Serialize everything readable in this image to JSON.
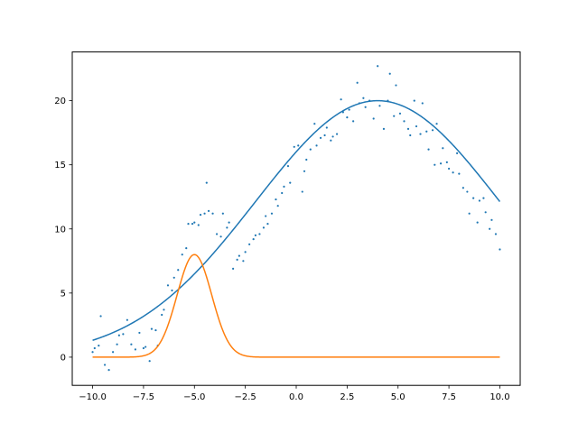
{
  "chart_data": {
    "type": "scatter",
    "title": "",
    "xlabel": "",
    "ylabel": "",
    "xlim": [
      -11.0,
      11.0
    ],
    "ylim": [
      -2.2,
      23.8
    ],
    "grid": false,
    "legend": "none",
    "x_ticks": [
      -10.0,
      -7.5,
      -5.0,
      -2.5,
      0.0,
      2.5,
      5.0,
      7.5,
      10.0
    ],
    "x_tick_labels": [
      "−10.0",
      "−7.5",
      "−5.0",
      "−2.5",
      "0.0",
      "2.5",
      "5.0",
      "7.5",
      "10.0"
    ],
    "y_ticks": [
      0,
      5,
      10,
      15,
      20
    ],
    "y_tick_labels": [
      "0",
      "5",
      "10",
      "15",
      "20"
    ],
    "series": [
      {
        "kind": "scatter",
        "color": "#1f77b4",
        "points": [
          [
            -10.0,
            0.4
          ],
          [
            -9.9,
            0.7
          ],
          [
            -9.7,
            0.9
          ],
          [
            -9.6,
            3.2
          ],
          [
            -9.4,
            -0.6
          ],
          [
            -9.2,
            -1.0
          ],
          [
            -9.0,
            0.4
          ],
          [
            -8.8,
            1.0
          ],
          [
            -8.7,
            1.7
          ],
          [
            -8.5,
            1.8
          ],
          [
            -8.3,
            2.9
          ],
          [
            -8.1,
            1.0
          ],
          [
            -7.9,
            0.6
          ],
          [
            -7.7,
            1.9
          ],
          [
            -7.5,
            0.7
          ],
          [
            -7.4,
            0.8
          ],
          [
            -7.2,
            -0.3
          ],
          [
            -7.1,
            2.2
          ],
          [
            -6.9,
            2.1
          ],
          [
            -6.8,
            0.9
          ],
          [
            -6.6,
            3.3
          ],
          [
            -6.5,
            3.7
          ],
          [
            -6.3,
            5.6
          ],
          [
            -6.1,
            5.2
          ],
          [
            -6.0,
            6.2
          ],
          [
            -5.8,
            6.8
          ],
          [
            -5.6,
            8.0
          ],
          [
            -5.4,
            8.5
          ],
          [
            -5.3,
            10.4
          ],
          [
            -5.1,
            10.4
          ],
          [
            -5.0,
            10.5
          ],
          [
            -4.8,
            10.3
          ],
          [
            -4.7,
            11.1
          ],
          [
            -4.5,
            11.2
          ],
          [
            -4.4,
            13.6
          ],
          [
            -4.3,
            11.4
          ],
          [
            -4.1,
            11.2
          ],
          [
            -3.9,
            9.6
          ],
          [
            -3.7,
            9.4
          ],
          [
            -3.6,
            11.2
          ],
          [
            -3.4,
            10.1
          ],
          [
            -3.3,
            10.5
          ],
          [
            -3.1,
            6.9
          ],
          [
            -2.9,
            7.6
          ],
          [
            -2.8,
            7.9
          ],
          [
            -2.6,
            7.5
          ],
          [
            -2.5,
            8.2
          ],
          [
            -2.3,
            8.8
          ],
          [
            -2.1,
            9.2
          ],
          [
            -2.0,
            9.5
          ],
          [
            -1.8,
            9.6
          ],
          [
            -1.6,
            10.1
          ],
          [
            -1.5,
            11.0
          ],
          [
            -1.4,
            10.4
          ],
          [
            -1.2,
            11.2
          ],
          [
            -1.0,
            12.3
          ],
          [
            -0.9,
            11.8
          ],
          [
            -0.7,
            12.8
          ],
          [
            -0.6,
            13.3
          ],
          [
            -0.4,
            14.9
          ],
          [
            -0.3,
            13.6
          ],
          [
            -0.1,
            16.4
          ],
          [
            0.1,
            16.5
          ],
          [
            0.3,
            12.9
          ],
          [
            0.4,
            14.5
          ],
          [
            0.5,
            15.4
          ],
          [
            0.7,
            16.2
          ],
          [
            0.9,
            18.2
          ],
          [
            1.0,
            16.5
          ],
          [
            1.2,
            17.1
          ],
          [
            1.4,
            17.3
          ],
          [
            1.5,
            17.9
          ],
          [
            1.7,
            16.9
          ],
          [
            1.8,
            17.2
          ],
          [
            2.0,
            17.4
          ],
          [
            2.2,
            20.1
          ],
          [
            2.3,
            19.1
          ],
          [
            2.5,
            18.7
          ],
          [
            2.6,
            19.3
          ],
          [
            2.8,
            18.4
          ],
          [
            3.0,
            21.4
          ],
          [
            3.1,
            19.8
          ],
          [
            3.3,
            20.2
          ],
          [
            3.4,
            19.5
          ],
          [
            3.6,
            20.0
          ],
          [
            3.8,
            18.6
          ],
          [
            4.0,
            22.7
          ],
          [
            4.1,
            19.6
          ],
          [
            4.3,
            17.8
          ],
          [
            4.5,
            20.0
          ],
          [
            4.6,
            22.1
          ],
          [
            4.8,
            18.8
          ],
          [
            4.9,
            21.2
          ],
          [
            5.1,
            19.0
          ],
          [
            5.3,
            18.4
          ],
          [
            5.5,
            17.8
          ],
          [
            5.6,
            17.3
          ],
          [
            5.8,
            20.0
          ],
          [
            5.9,
            18.0
          ],
          [
            6.1,
            17.4
          ],
          [
            6.2,
            19.8
          ],
          [
            6.4,
            17.6
          ],
          [
            6.5,
            16.2
          ],
          [
            6.7,
            17.7
          ],
          [
            6.8,
            15.0
          ],
          [
            6.9,
            18.2
          ],
          [
            7.1,
            15.1
          ],
          [
            7.2,
            16.3
          ],
          [
            7.4,
            15.2
          ],
          [
            7.5,
            14.7
          ],
          [
            7.7,
            14.4
          ],
          [
            7.9,
            15.9
          ],
          [
            8.0,
            14.3
          ],
          [
            8.2,
            13.2
          ],
          [
            8.4,
            12.9
          ],
          [
            8.5,
            11.2
          ],
          [
            8.7,
            12.4
          ],
          [
            8.9,
            10.5
          ],
          [
            9.0,
            12.2
          ],
          [
            9.2,
            12.4
          ],
          [
            9.3,
            11.3
          ],
          [
            9.5,
            10.0
          ],
          [
            9.6,
            10.7
          ],
          [
            9.8,
            9.6
          ],
          [
            10.0,
            8.4
          ]
        ]
      },
      {
        "kind": "line",
        "color": "#1f77b4",
        "model": "gaussian",
        "amplitude": 20.0,
        "center": 4.0,
        "sigma": 6.0,
        "x_range": [
          -10.0,
          10.0
        ]
      },
      {
        "kind": "line",
        "color": "#ff7f0e",
        "model": "gaussian",
        "amplitude": 8.0,
        "center": -5.0,
        "sigma": 0.85,
        "x_range": [
          -10.0,
          10.0
        ]
      }
    ]
  }
}
